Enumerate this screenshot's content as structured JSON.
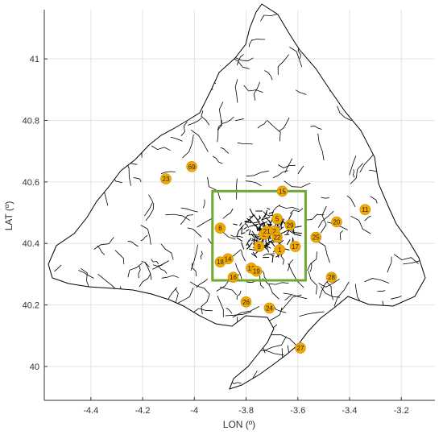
{
  "chart_data": {
    "type": "scatter",
    "title": "",
    "xlabel": "LON (º)",
    "ylabel": "LAT (º)",
    "xlim": [
      -4.58,
      -3.07
    ],
    "ylim": [
      39.89,
      41.16
    ],
    "grid": true,
    "x_ticks": [
      -4.4,
      -4.2,
      -4.0,
      -3.8,
      -3.6,
      -3.4,
      -3.2
    ],
    "x_tick_labels": [
      "-4.4",
      "-4.2",
      "-4",
      "-3.8",
      "-3.6",
      "-3.4",
      "-3.2"
    ],
    "y_ticks": [
      40.0,
      40.2,
      40.4,
      40.6,
      40.8,
      41.0
    ],
    "y_tick_labels": [
      "40",
      "40.2",
      "40.4",
      "40.6",
      "40.8",
      "41"
    ],
    "region_box": {
      "lon_min": -3.93,
      "lon_max": -3.57,
      "lat_min": 40.28,
      "lat_max": 40.57
    },
    "markers": [
      {
        "label": "1",
        "lon": -3.67,
        "lat": 40.38
      },
      {
        "label": "2",
        "lon": -3.69,
        "lat": 40.44
      },
      {
        "label": "5",
        "lon": -3.68,
        "lat": 40.48
      },
      {
        "label": "6",
        "lon": -3.73,
        "lat": 40.43
      },
      {
        "label": "8",
        "lon": -3.9,
        "lat": 40.45
      },
      {
        "label": "9",
        "lon": -3.75,
        "lat": 40.39
      },
      {
        "label": "11",
        "lon": -3.34,
        "lat": 40.51
      },
      {
        "label": "12",
        "lon": -3.78,
        "lat": 40.32
      },
      {
        "label": "14",
        "lon": -3.87,
        "lat": 40.35
      },
      {
        "label": "15",
        "lon": -3.66,
        "lat": 40.57
      },
      {
        "label": "16",
        "lon": -3.85,
        "lat": 40.29
      },
      {
        "label": "17",
        "lon": -3.61,
        "lat": 40.39
      },
      {
        "label": "18",
        "lon": -3.9,
        "lat": 40.34
      },
      {
        "label": "19",
        "lon": -3.76,
        "lat": 40.31
      },
      {
        "label": "20",
        "lon": -3.45,
        "lat": 40.47
      },
      {
        "label": "21",
        "lon": -3.72,
        "lat": 40.44
      },
      {
        "label": "22",
        "lon": -3.68,
        "lat": 40.42
      },
      {
        "label": "23",
        "lon": -4.11,
        "lat": 40.61
      },
      {
        "label": "24",
        "lon": -3.71,
        "lat": 40.19
      },
      {
        "label": "25",
        "lon": -3.53,
        "lat": 40.42
      },
      {
        "label": "26",
        "lon": -3.8,
        "lat": 40.21
      },
      {
        "label": "27",
        "lon": -3.59,
        "lat": 40.06
      },
      {
        "label": "28",
        "lon": -3.47,
        "lat": 40.29
      },
      {
        "label": "29",
        "lon": -3.63,
        "lat": 40.46
      },
      {
        "label": "69",
        "lon": -4.01,
        "lat": 40.65
      }
    ],
    "colors": {
      "marker_fill": "#f2a900",
      "marker_stroke": "#c98a00",
      "region_box": "#6fa832",
      "boundaries": "#000000",
      "grid": "#e3e3e3"
    }
  }
}
